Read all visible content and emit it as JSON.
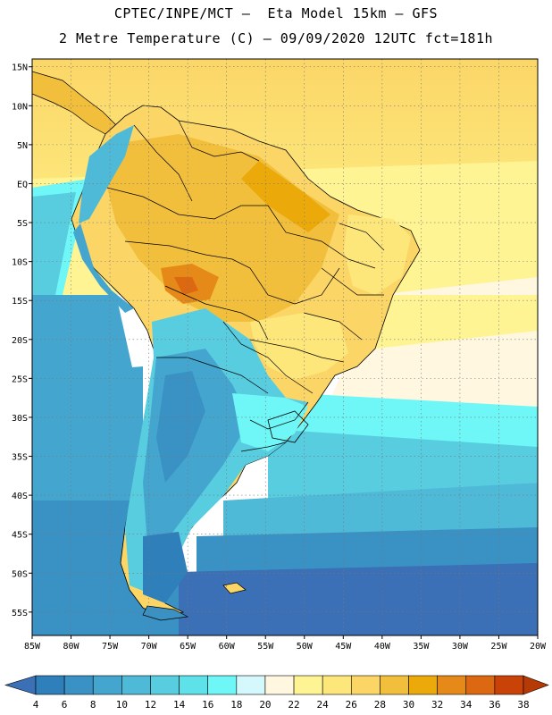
{
  "header": {
    "line1": "CPTEC/INPE/MCT –  Eta Model 15km – GFS",
    "line2": "2 Metre Temperature (C) – 09/09/2020 12UTC fct=181h"
  },
  "map": {
    "region": "South America",
    "lon_range": [
      -85,
      -20
    ],
    "lat_range": [
      -58,
      16
    ],
    "lon_ticks": [
      "85W",
      "80W",
      "75W",
      "70W",
      "65W",
      "60W",
      "55W",
      "50W",
      "45W",
      "40W",
      "35W",
      "30W",
      "25W",
      "20W"
    ],
    "lat_ticks": [
      "15N",
      "10N",
      "5N",
      "EQ",
      "5S",
      "10S",
      "15S",
      "20S",
      "25S",
      "30S",
      "35S",
      "40S",
      "45S",
      "50S",
      "55S"
    ],
    "grid": "dotted"
  },
  "colorbar": {
    "labels": [
      "4",
      "6",
      "8",
      "10",
      "12",
      "14",
      "16",
      "18",
      "20",
      "22",
      "24",
      "26",
      "28",
      "30",
      "32",
      "34",
      "36",
      "38"
    ],
    "colors": [
      "#3b6fb6",
      "#2f7fba",
      "#3a91c4",
      "#44a6cf",
      "#4fbad8",
      "#58cde0",
      "#5fe1ea",
      "#6ff6f6",
      "#d4f8fb",
      "#fff7df",
      "#fff493",
      "#fde67a",
      "#fbd667",
      "#f2bf3d",
      "#eba90a",
      "#e58a19",
      "#dd6812",
      "#c94308",
      "#b53a06"
    ]
  }
}
